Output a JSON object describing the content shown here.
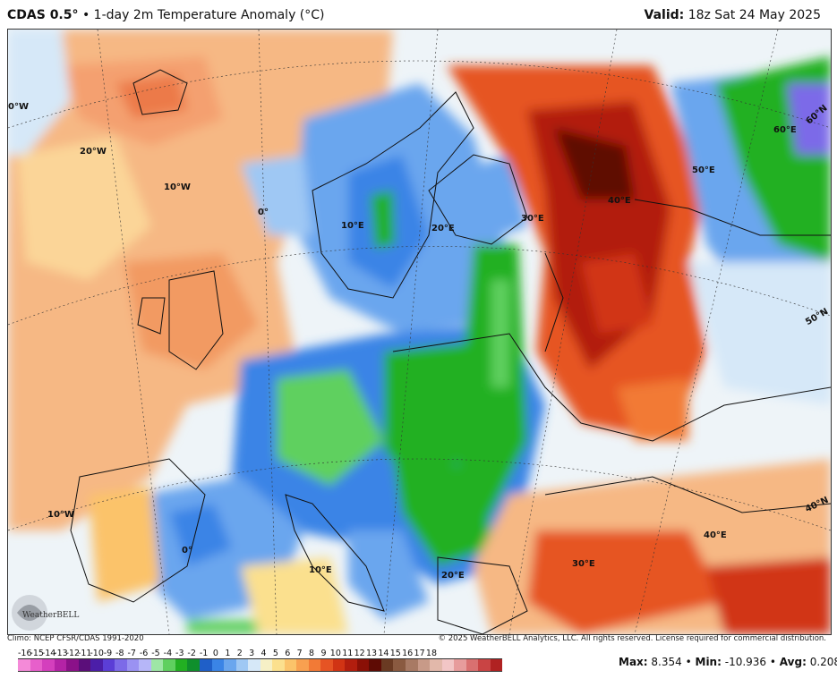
{
  "header": {
    "model": "CDAS 0.5°",
    "title": "• 1-day 2m Temperature Anomaly (°C)",
    "valid_label": "Valid:",
    "valid_time": "18z Sat 24 May 2025"
  },
  "map_labels": {
    "lon_0W": "0°W",
    "lon_20W": "20°W",
    "lon_10W_north": "10°W",
    "lon_0": "0°",
    "lon_10E_north": "10°E",
    "lon_20E_north": "20°E",
    "lon_30E_north": "30°E",
    "lon_40E_north": "40°E",
    "lon_50E": "50°E",
    "lon_60E": "60°E",
    "lat_60N": "60°N",
    "lat_50N": "50°N",
    "lat_40N": "40°N",
    "lon_10W_south": "10°W",
    "lon_0_south": "0°",
    "lon_10E_south": "10°E",
    "lon_20E_south": "20°E",
    "lon_30E_south": "30°E",
    "lon_40E_south": "40°E"
  },
  "footer": {
    "climo": "Climo: NCEP CFSR/CDAS 1991-2020",
    "copyright": "© 2025 WeatherBELL Analytics, LLC. All rights reserved. License required for commercial distribution."
  },
  "logo_text": "WeatherBELL",
  "colorbar": {
    "labels": [
      "-16",
      "-15",
      "-14",
      "-13",
      "-12",
      "-11",
      "-10",
      "-9",
      "-8",
      "-7",
      "-6",
      "-5",
      "-4",
      "-3",
      "-2",
      "-1",
      "0",
      "1",
      "2",
      "3",
      "4",
      "5",
      "6",
      "7",
      "8",
      "9",
      "10",
      "11",
      "12",
      "13",
      "14",
      "15",
      "16",
      "17",
      "18"
    ],
    "colors": [
      "#f48ad8",
      "#e75fcb",
      "#d43fbd",
      "#b423a6",
      "#8b1189",
      "#5b0e7a",
      "#4b1ea8",
      "#5b3ed6",
      "#7c6ae8",
      "#9a92f2",
      "#b6b6f8",
      "#9ee6a6",
      "#5fd05f",
      "#22b022",
      "#0f8f2c",
      "#1f5fc8",
      "#3a84e6",
      "#6aa6ee",
      "#9fc8f4",
      "#d6e8f8",
      "#f6f0c6",
      "#fbe08e",
      "#fbc36a",
      "#f8a050",
      "#f27a36",
      "#e65424",
      "#d13414",
      "#b21e0e",
      "#8a1006",
      "#5e0b04",
      "#6a3a22",
      "#8a5a40",
      "#a87a64",
      "#c89a88",
      "#e2b8aa",
      "#f2c6c6",
      "#e79c9c",
      "#d97070",
      "#c94444",
      "#b02222"
    ]
  },
  "stats": {
    "max_label": "Max:",
    "max_value": "8.354",
    "min_label": "Min:",
    "min_value": "-10.936",
    "avg_label": "Avg:",
    "avg_value": "0.208",
    "sep": "•"
  }
}
